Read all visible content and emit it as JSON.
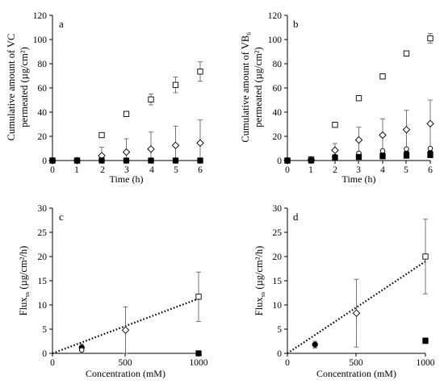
{
  "chart_data": [
    {
      "panel": "a",
      "type": "scatter",
      "ylabel_lines": [
        "Cumulative amount of VC",
        "permeated (µg/cm²)"
      ],
      "xlabel": "Time (h)",
      "xlim": [
        0,
        6
      ],
      "ylim": [
        0,
        120
      ],
      "xticks": [
        "0",
        "1",
        "2",
        "3",
        "4",
        "5",
        "6"
      ],
      "yticks": [
        "0",
        "20",
        "40",
        "60",
        "80",
        "100",
        "120"
      ],
      "grid": false,
      "legend": "none",
      "series": [
        {
          "marker": "square-open",
          "x": [
            0,
            1,
            2,
            3,
            4,
            5,
            6
          ],
          "y": [
            0,
            0,
            21,
            38.5,
            50.5,
            62.5,
            73.5
          ],
          "err": [
            0,
            0,
            1.5,
            1.5,
            4.5,
            6.5,
            8
          ]
        },
        {
          "marker": "diamond-open",
          "x": [
            0,
            1,
            2,
            3,
            4,
            5,
            6
          ],
          "y": [
            0,
            0,
            4,
            7,
            9.5,
            12.5,
            14.5
          ],
          "err": [
            0,
            0,
            7,
            11,
            14,
            16,
            19
          ]
        },
        {
          "marker": "circle-filled",
          "x": [
            0,
            1,
            2,
            3,
            4,
            5,
            6
          ],
          "y": [
            0,
            0,
            0,
            0,
            0,
            0,
            0
          ],
          "err": [
            0,
            0,
            0,
            0,
            0,
            0,
            0
          ]
        },
        {
          "marker": "square-filled",
          "x": [
            0,
            1,
            2,
            3,
            4,
            5,
            6
          ],
          "y": [
            0,
            0,
            0,
            0,
            0,
            0,
            0
          ],
          "err": [
            0,
            0,
            0,
            0,
            0,
            0,
            0
          ]
        }
      ]
    },
    {
      "panel": "b",
      "type": "scatter",
      "ylabel_lines": [
        "Cumulative amount of VB₆",
        "permeated (µg/cm²)"
      ],
      "xlabel": "Time (h)",
      "xlim": [
        0,
        6
      ],
      "ylim": [
        0,
        120
      ],
      "xticks": [
        "0",
        "1",
        "2",
        "3",
        "4",
        "5",
        "6"
      ],
      "yticks": [
        "0",
        "20",
        "40",
        "60",
        "80",
        "100",
        "120"
      ],
      "grid": false,
      "legend": "none",
      "series": [
        {
          "marker": "square-open",
          "x": [
            0,
            1,
            2,
            3,
            4,
            5,
            6
          ],
          "y": [
            0,
            1,
            29.5,
            51.5,
            69.5,
            88.5,
            101
          ],
          "err": [
            0,
            0,
            1,
            1,
            2,
            2,
            4
          ]
        },
        {
          "marker": "diamond-open",
          "x": [
            0,
            1,
            2,
            3,
            4,
            5,
            6
          ],
          "y": [
            0,
            0.5,
            8.5,
            17,
            21,
            25.5,
            30.5
          ],
          "err": [
            0,
            0,
            5.5,
            10.5,
            13.5,
            16,
            19.5
          ]
        },
        {
          "marker": "circle-filled",
          "x": [
            0,
            1,
            2,
            3,
            4,
            5,
            6
          ],
          "y": [
            0,
            0,
            3,
            4,
            5,
            6,
            6.5
          ],
          "err": [
            0,
            0,
            0,
            0,
            0,
            0,
            0
          ]
        },
        {
          "marker": "circle-open",
          "x": [
            0,
            1,
            2,
            3,
            4,
            5,
            6
          ],
          "y": [
            0,
            0,
            3,
            6,
            8,
            9.5,
            10
          ],
          "err": [
            0,
            0,
            0,
            0,
            0,
            0,
            0
          ]
        },
        {
          "marker": "square-filled",
          "x": [
            0,
            1,
            2,
            3,
            4,
            5,
            6
          ],
          "y": [
            0,
            0,
            2.5,
            3,
            3.5,
            4,
            4.5
          ],
          "err": [
            0,
            0,
            0,
            0,
            0,
            0,
            0
          ]
        }
      ]
    },
    {
      "panel": "c",
      "type": "scatter",
      "ylabel_lines": [
        "Flux",
        "ss",
        " (µg/cm²/h)"
      ],
      "xlabel": "Concentration (mM)",
      "xlim": [
        0,
        1000
      ],
      "ylim": [
        0,
        30
      ],
      "xticks": [
        "0",
        "500",
        "1000"
      ],
      "yticks": [
        "0",
        "5",
        "10",
        "15",
        "20",
        "25",
        "30"
      ],
      "grid": false,
      "legend": "none",
      "trendline": {
        "style": "dotted",
        "x": [
          0,
          1000
        ],
        "y": [
          0,
          11.3
        ]
      },
      "series": [
        {
          "marker": "circle-filled",
          "x": [
            200
          ],
          "y": [
            1.2
          ],
          "err": [
            0.7
          ]
        },
        {
          "marker": "circle-open",
          "x": [
            200
          ],
          "y": [
            0.7
          ],
          "err": [
            0
          ]
        },
        {
          "marker": "diamond-open",
          "x": [
            500
          ],
          "y": [
            4.8
          ],
          "err": [
            4.8
          ]
        },
        {
          "marker": "square-open",
          "x": [
            1000
          ],
          "y": [
            11.7
          ],
          "err": [
            5.1
          ]
        },
        {
          "marker": "square-filled",
          "x": [
            1000
          ],
          "y": [
            0
          ],
          "err": [
            0
          ]
        }
      ]
    },
    {
      "panel": "d",
      "type": "scatter",
      "ylabel_lines": [
        "Flux",
        "ss",
        " (µg/cm²/h)"
      ],
      "xlabel": "Concentration (mM)",
      "xlim": [
        0,
        1000
      ],
      "ylim": [
        0,
        30
      ],
      "xticks": [
        "0",
        "500",
        "1000"
      ],
      "yticks": [
        "0",
        "5",
        "10",
        "15",
        "20",
        "25",
        "30"
      ],
      "grid": false,
      "legend": "none",
      "trendline": {
        "style": "dotted",
        "x": [
          0,
          1000
        ],
        "y": [
          0,
          19
        ]
      },
      "series": [
        {
          "marker": "circle-filled",
          "x": [
            200
          ],
          "y": [
            1.8
          ],
          "err": [
            0.7
          ]
        },
        {
          "marker": "diamond-open",
          "x": [
            500
          ],
          "y": [
            8.3
          ],
          "err": [
            7
          ]
        },
        {
          "marker": "square-open",
          "x": [
            1000
          ],
          "y": [
            20
          ],
          "err": [
            7.7
          ]
        },
        {
          "marker": "square-filled",
          "x": [
            1000
          ],
          "y": [
            2.6
          ],
          "err": [
            0.6
          ]
        }
      ]
    }
  ]
}
